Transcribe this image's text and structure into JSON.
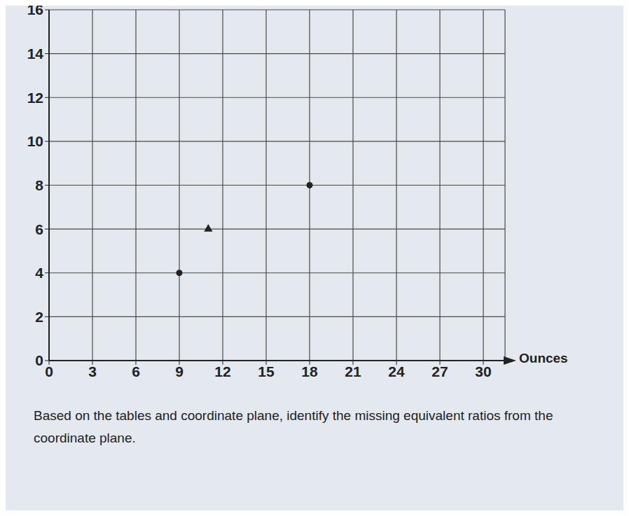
{
  "chart_data": {
    "type": "scatter",
    "x_label": "Ounces",
    "xlim": [
      0,
      31.5
    ],
    "xticks": [
      0,
      3,
      6,
      9,
      12,
      15,
      18,
      21,
      24,
      27,
      30
    ],
    "ylim": [
      0,
      16
    ],
    "yticks": [
      0,
      2,
      4,
      6,
      8,
      10,
      12,
      14,
      16
    ],
    "grid": true,
    "tick_labels": true,
    "series": [
      {
        "marker": "circle",
        "color": "#222222",
        "x": [
          9,
          18
        ],
        "values": [
          4,
          8
        ]
      },
      {
        "marker": "triangle",
        "color": "#222222",
        "x": [
          11
        ],
        "values": [
          6
        ]
      }
    ],
    "caption": "Based on the tables and coordinate plane, identify the missing equivalent ratios from the coordinate plane."
  }
}
